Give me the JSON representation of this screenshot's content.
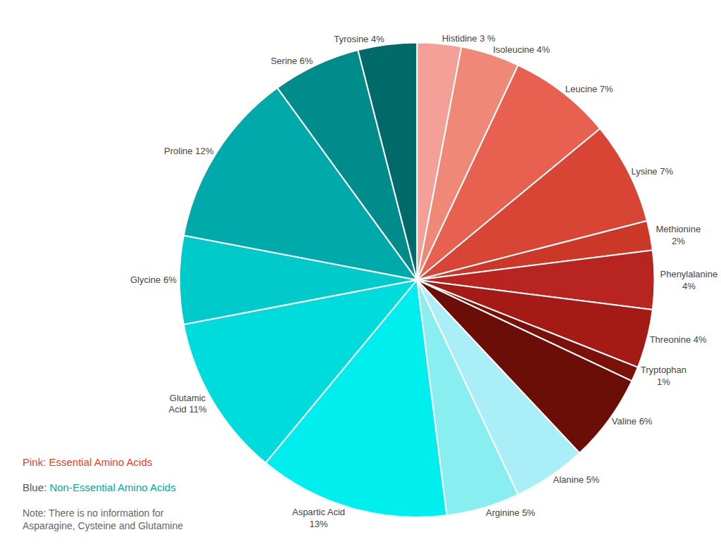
{
  "chart_data": {
    "type": "pie",
    "categories": [
      "Histidine 3 %",
      "Isoleucine 4%",
      "Leucine 7%",
      "Lysine 7%",
      "Methionine\n2%",
      "Phenylalanine\n4%",
      "Threonine 4%",
      "Tryptophan\n1%",
      "Valine 6%",
      "Alanine 5%",
      "Arginine 5%",
      "Aspartic Acid\n13%",
      "Glutamic\nAcid 11%",
      "Glycine 6%",
      "Proline 12%",
      "Serine 6%",
      "Tyrosine 4%"
    ],
    "values": [
      3,
      4,
      7,
      7,
      2,
      4,
      4,
      1,
      6,
      5,
      5,
      13,
      11,
      6,
      12,
      6,
      4
    ],
    "colors": [
      "#F4A099",
      "#F08878",
      "#E86050",
      "#D94535",
      "#CC3828",
      "#B82520",
      "#A41A15",
      "#7A1008",
      "#6B0E08",
      "#AAEEF8",
      "#88EEF0",
      "#00EEEE",
      "#00DCDC",
      "#00CACA",
      "#00AAAA",
      "#008C8A",
      "#006A68"
    ],
    "annotations": [
      [
        {
          "text": "Pink: Essential Amino Acids",
          "color": "#E84030"
        }
      ],
      [
        {
          "text": "Blue:",
          "color": "#555555"
        },
        {
          "text": "Non-Essential Amino Acids",
          "color": "#00A8A0"
        }
      ],
      [
        {
          "text": "Note: There is no information for\nAsparagine, Cysteine and Glutamine",
          "color": "#666666"
        }
      ]
    ]
  }
}
